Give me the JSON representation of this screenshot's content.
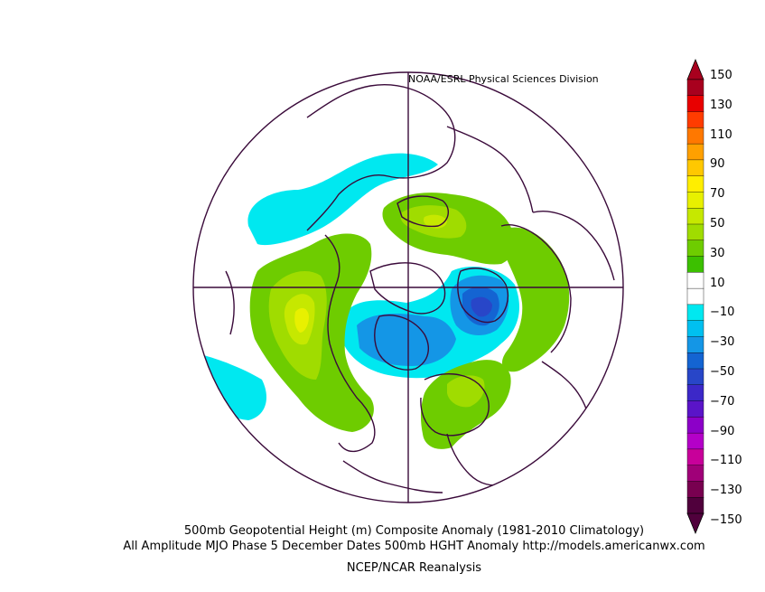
{
  "header": {
    "credit": "NOAA/ESRL Physical Sciences Division"
  },
  "footer": {
    "line1": "500mb Geopotential Height (m) Composite Anomaly (1981-2010 Climatology)",
    "line2": "All Amplitude MJO Phase 5 December Dates 500mb HGHT Anomaly http://models.americanwx.com",
    "line3": "NCEP/NCAR Reanalysis"
  },
  "colorbar": {
    "labels": [
      "150",
      "130",
      "110",
      "90",
      "70",
      "50",
      "30",
      "10",
      "−10",
      "−30",
      "−50",
      "−70",
      "−90",
      "−110",
      "−130",
      "−150"
    ],
    "colors": [
      "#a8001e",
      "#e80000",
      "#ff3c00",
      "#ff7800",
      "#ffa000",
      "#ffc800",
      "#ffee00",
      "#e8f000",
      "#c6e800",
      "#a0dc00",
      "#6ecc00",
      "#3cc000",
      "#ffffff",
      "#ffffff",
      "#00e8f0",
      "#00c0f0",
      "#1496e6",
      "#1464d2",
      "#2846c8",
      "#3c28c8",
      "#5a14c8",
      "#8c00c8",
      "#b400c8",
      "#c8009a",
      "#a00078",
      "#780050",
      "#50003c"
    ]
  }
}
